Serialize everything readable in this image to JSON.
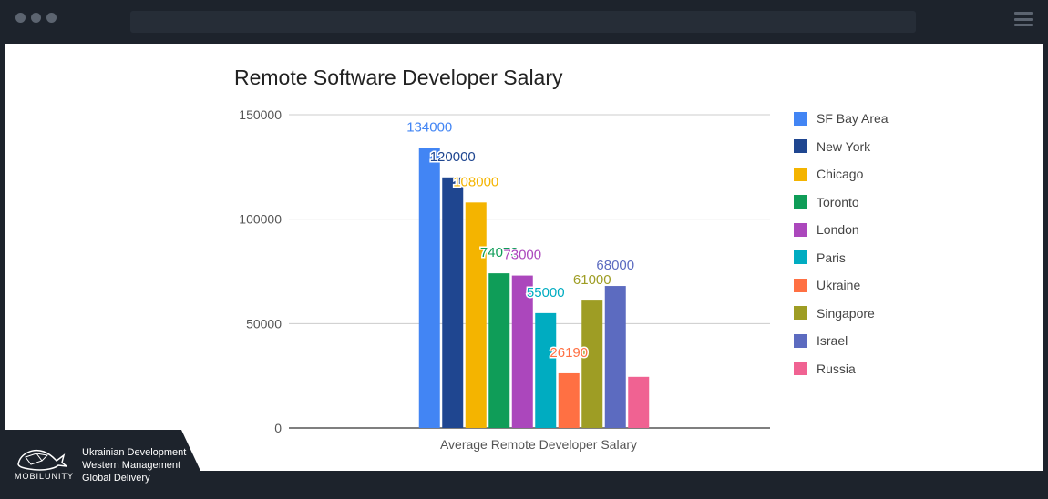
{
  "chart_data": {
    "type": "bar",
    "title": "Remote Software Developer Salary",
    "xlabel": "Average Remote Developer Salary",
    "ylabel": "",
    "ylim": [
      0,
      150000
    ],
    "yticks": [
      "0",
      "50000",
      "100000",
      "150000"
    ],
    "ytick_values": [
      0,
      50000,
      100000,
      150000
    ],
    "grid": true,
    "legend_position": "right",
    "categories": [
      "Average Remote Developer Salary"
    ],
    "series": [
      {
        "name": "SF Bay Area",
        "values": [
          134000
        ],
        "label": "134000",
        "color": "#4285f4"
      },
      {
        "name": "New York",
        "values": [
          120000
        ],
        "label": "120000",
        "color": "#1f4690"
      },
      {
        "name": "Chicago",
        "values": [
          108000
        ],
        "label": "108000",
        "color": "#f4b400"
      },
      {
        "name": "Toronto",
        "values": [
          74073
        ],
        "label": "74073",
        "color": "#0f9d58"
      },
      {
        "name": "London",
        "values": [
          73000
        ],
        "label": "73000",
        "color": "#ab47bc"
      },
      {
        "name": "Paris",
        "values": [
          55000
        ],
        "label": "55000",
        "color": "#00acc1"
      },
      {
        "name": "Ukraine",
        "values": [
          26190
        ],
        "label": "26190",
        "color": "#ff7043"
      },
      {
        "name": "Singapore",
        "values": [
          61000
        ],
        "label": "61000",
        "color": "#9e9d24"
      },
      {
        "name": "Israel",
        "values": [
          68000
        ],
        "label": "68000",
        "color": "#5c6bc0"
      },
      {
        "name": "Russia",
        "values": [
          24500
        ],
        "label": "",
        "color": "#f06292"
      }
    ]
  },
  "badge": {
    "logo_text": "MOBILUNITY",
    "taglines": [
      "Ukrainian Development",
      "Western Management",
      "Global Delivery"
    ],
    "accent_color": "#d58a2f",
    "icon": "whale-icon"
  },
  "browser": {
    "menu_icon": "hamburger-menu-icon"
  }
}
